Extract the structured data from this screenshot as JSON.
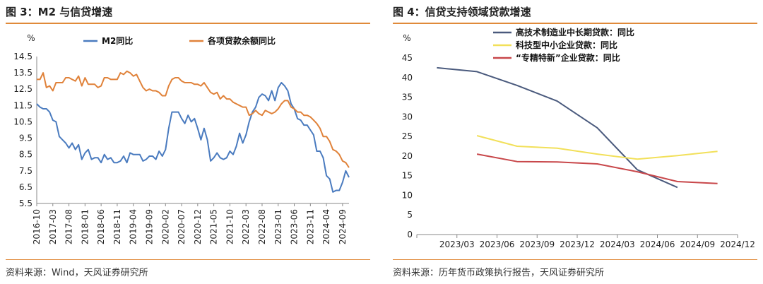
{
  "left": {
    "title": "图 3：M2 与信贷增速",
    "source": "资料来源：Wind，天风证券研究所",
    "colors": {
      "m2": "#4a7bbf",
      "loan": "#e0823a",
      "rule": "#e08a3a"
    }
  },
  "right": {
    "title": "图 4：信贷支持领域贷款增速",
    "source": "资料来源：历年货币政策执行报告，天风证券研究所",
    "colors": {
      "hitech": "#4a5a7d",
      "sme": "#f2e05a",
      "specialized": "#c8474a"
    }
  },
  "chart_data": [
    {
      "type": "line",
      "ylabel": "%",
      "ylim": [
        5.5,
        14.5
      ],
      "yticks": [
        "14.5",
        "13.5",
        "12.5",
        "11.5",
        "10.5",
        "9.5",
        "8.5",
        "7.5",
        "6.5",
        "5.5"
      ],
      "xticks": [
        "2016-10",
        "2017-03",
        "2017-08",
        "2018-01",
        "2018-06",
        "2018-11",
        "2019-04",
        "2019-09",
        "2020-02",
        "2020-07",
        "2020-12",
        "2021-05",
        "2021-10",
        "2022-03",
        "2022-08",
        "2023-01",
        "2023-06",
        "2023-11",
        "2024-04",
        "2024-09"
      ],
      "x": [
        "2016-10",
        "2016-11",
        "2016-12",
        "2017-01",
        "2017-02",
        "2017-03",
        "2017-04",
        "2017-05",
        "2017-06",
        "2017-07",
        "2017-08",
        "2017-09",
        "2017-10",
        "2017-11",
        "2017-12",
        "2018-01",
        "2018-02",
        "2018-03",
        "2018-04",
        "2018-05",
        "2018-06",
        "2018-07",
        "2018-08",
        "2018-09",
        "2018-10",
        "2018-11",
        "2018-12",
        "2019-01",
        "2019-02",
        "2019-03",
        "2019-04",
        "2019-05",
        "2019-06",
        "2019-07",
        "2019-08",
        "2019-09",
        "2019-10",
        "2019-11",
        "2019-12",
        "2020-01",
        "2020-02",
        "2020-03",
        "2020-04",
        "2020-05",
        "2020-06",
        "2020-07",
        "2020-08",
        "2020-09",
        "2020-10",
        "2020-11",
        "2020-12",
        "2021-01",
        "2021-02",
        "2021-03",
        "2021-04",
        "2021-05",
        "2021-06",
        "2021-07",
        "2021-08",
        "2021-09",
        "2021-10",
        "2021-11",
        "2021-12",
        "2022-01",
        "2022-02",
        "2022-03",
        "2022-04",
        "2022-05",
        "2022-06",
        "2022-07",
        "2022-08",
        "2022-09",
        "2022-10",
        "2022-11",
        "2022-12",
        "2023-01",
        "2023-02",
        "2023-03",
        "2023-04",
        "2023-05",
        "2023-06",
        "2023-07",
        "2023-08",
        "2023-09",
        "2023-10",
        "2023-11",
        "2023-12",
        "2024-01",
        "2024-02",
        "2024-03",
        "2024-04",
        "2024-05",
        "2024-06",
        "2024-07",
        "2024-08",
        "2024-09",
        "2024-10",
        "2024-11"
      ],
      "series": [
        {
          "name": "M2同比",
          "values": [
            11.6,
            11.4,
            11.3,
            11.3,
            11.1,
            10.6,
            10.5,
            9.6,
            9.4,
            9.2,
            8.9,
            9.2,
            8.8,
            9.1,
            8.2,
            8.6,
            8.8,
            8.2,
            8.3,
            8.3,
            8.0,
            8.5,
            8.2,
            8.3,
            8.0,
            8.0,
            8.1,
            8.4,
            8.0,
            8.6,
            8.5,
            8.5,
            8.5,
            8.1,
            8.2,
            8.4,
            8.4,
            8.2,
            8.7,
            8.4,
            8.8,
            10.1,
            11.1,
            11.1,
            11.1,
            10.7,
            10.4,
            10.9,
            10.5,
            10.7,
            10.1,
            9.4,
            10.1,
            9.4,
            8.1,
            8.3,
            8.6,
            8.3,
            8.2,
            8.3,
            8.7,
            8.5,
            9.0,
            9.8,
            9.2,
            9.7,
            10.5,
            11.1,
            11.4,
            12.0,
            12.2,
            12.1,
            11.8,
            12.4,
            11.8,
            12.6,
            12.9,
            12.7,
            12.4,
            11.6,
            11.3,
            10.7,
            10.6,
            10.3,
            10.3,
            10.0,
            9.7,
            8.7,
            8.7,
            8.3,
            7.2,
            7.0,
            6.2,
            6.3,
            6.3,
            6.8,
            7.5,
            7.1
          ]
        },
        {
          "name": "各项贷款余额同比",
          "values": [
            13.1,
            13.1,
            13.5,
            12.6,
            12.7,
            12.4,
            12.9,
            12.9,
            12.9,
            13.2,
            13.2,
            13.1,
            13.0,
            13.3,
            12.7,
            13.2,
            12.8,
            12.8,
            12.8,
            12.6,
            12.7,
            13.2,
            13.2,
            13.1,
            13.1,
            13.1,
            13.5,
            13.4,
            13.6,
            13.5,
            13.3,
            13.4,
            13.0,
            12.6,
            12.4,
            12.5,
            12.4,
            12.4,
            12.3,
            12.1,
            12.1,
            12.7,
            13.1,
            13.2,
            13.2,
            13.0,
            12.9,
            12.9,
            12.9,
            12.8,
            12.8,
            12.7,
            12.9,
            12.6,
            12.3,
            12.2,
            12.3,
            11.9,
            12.1,
            11.9,
            11.9,
            11.7,
            11.6,
            11.5,
            11.4,
            11.4,
            10.9,
            11.0,
            11.2,
            11.0,
            10.9,
            11.2,
            11.1,
            11.0,
            11.1,
            11.3,
            11.6,
            11.8,
            11.8,
            11.4,
            11.3,
            11.1,
            11.1,
            10.9,
            10.9,
            10.8,
            10.6,
            10.4,
            10.1,
            9.6,
            9.6,
            9.3,
            8.8,
            8.7,
            8.5,
            8.1,
            8.0,
            7.7
          ]
        }
      ]
    },
    {
      "type": "line",
      "ylabel": "%",
      "ylim": [
        0,
        45
      ],
      "yticks": [
        "45",
        "40",
        "35",
        "30",
        "25",
        "20",
        "15",
        "10",
        "5",
        "0"
      ],
      "categories": [
        "2023/03",
        "2023/06",
        "2023/09",
        "2023/12",
        "2024/03",
        "2024/06",
        "2024/09",
        "2024/12"
      ],
      "series": [
        {
          "name": "高技术制造业中长期贷款：同比",
          "x": [
            "2023/03",
            "2023/06",
            "2023/09",
            "2023/12",
            "2024/03",
            "2024/06",
            "2024/09"
          ],
          "values": [
            42.5,
            41.5,
            38.0,
            34.0,
            27.2,
            16.5,
            12.0
          ]
        },
        {
          "name": "科技型中小企业贷款：同比",
          "x": [
            "2023/06",
            "2023/09",
            "2023/12",
            "2024/03",
            "2024/06",
            "2024/09",
            "2024/12"
          ],
          "values": [
            25.2,
            22.5,
            22.0,
            20.5,
            19.2,
            20.1,
            21.2
          ]
        },
        {
          "name": "“专精特新”企业贷款：同比",
          "x": [
            "2023/06",
            "2023/09",
            "2023/12",
            "2024/03",
            "2024/06",
            "2024/09",
            "2024/12"
          ],
          "values": [
            20.5,
            18.6,
            18.5,
            18.0,
            16.0,
            13.5,
            13.0
          ]
        }
      ]
    }
  ]
}
